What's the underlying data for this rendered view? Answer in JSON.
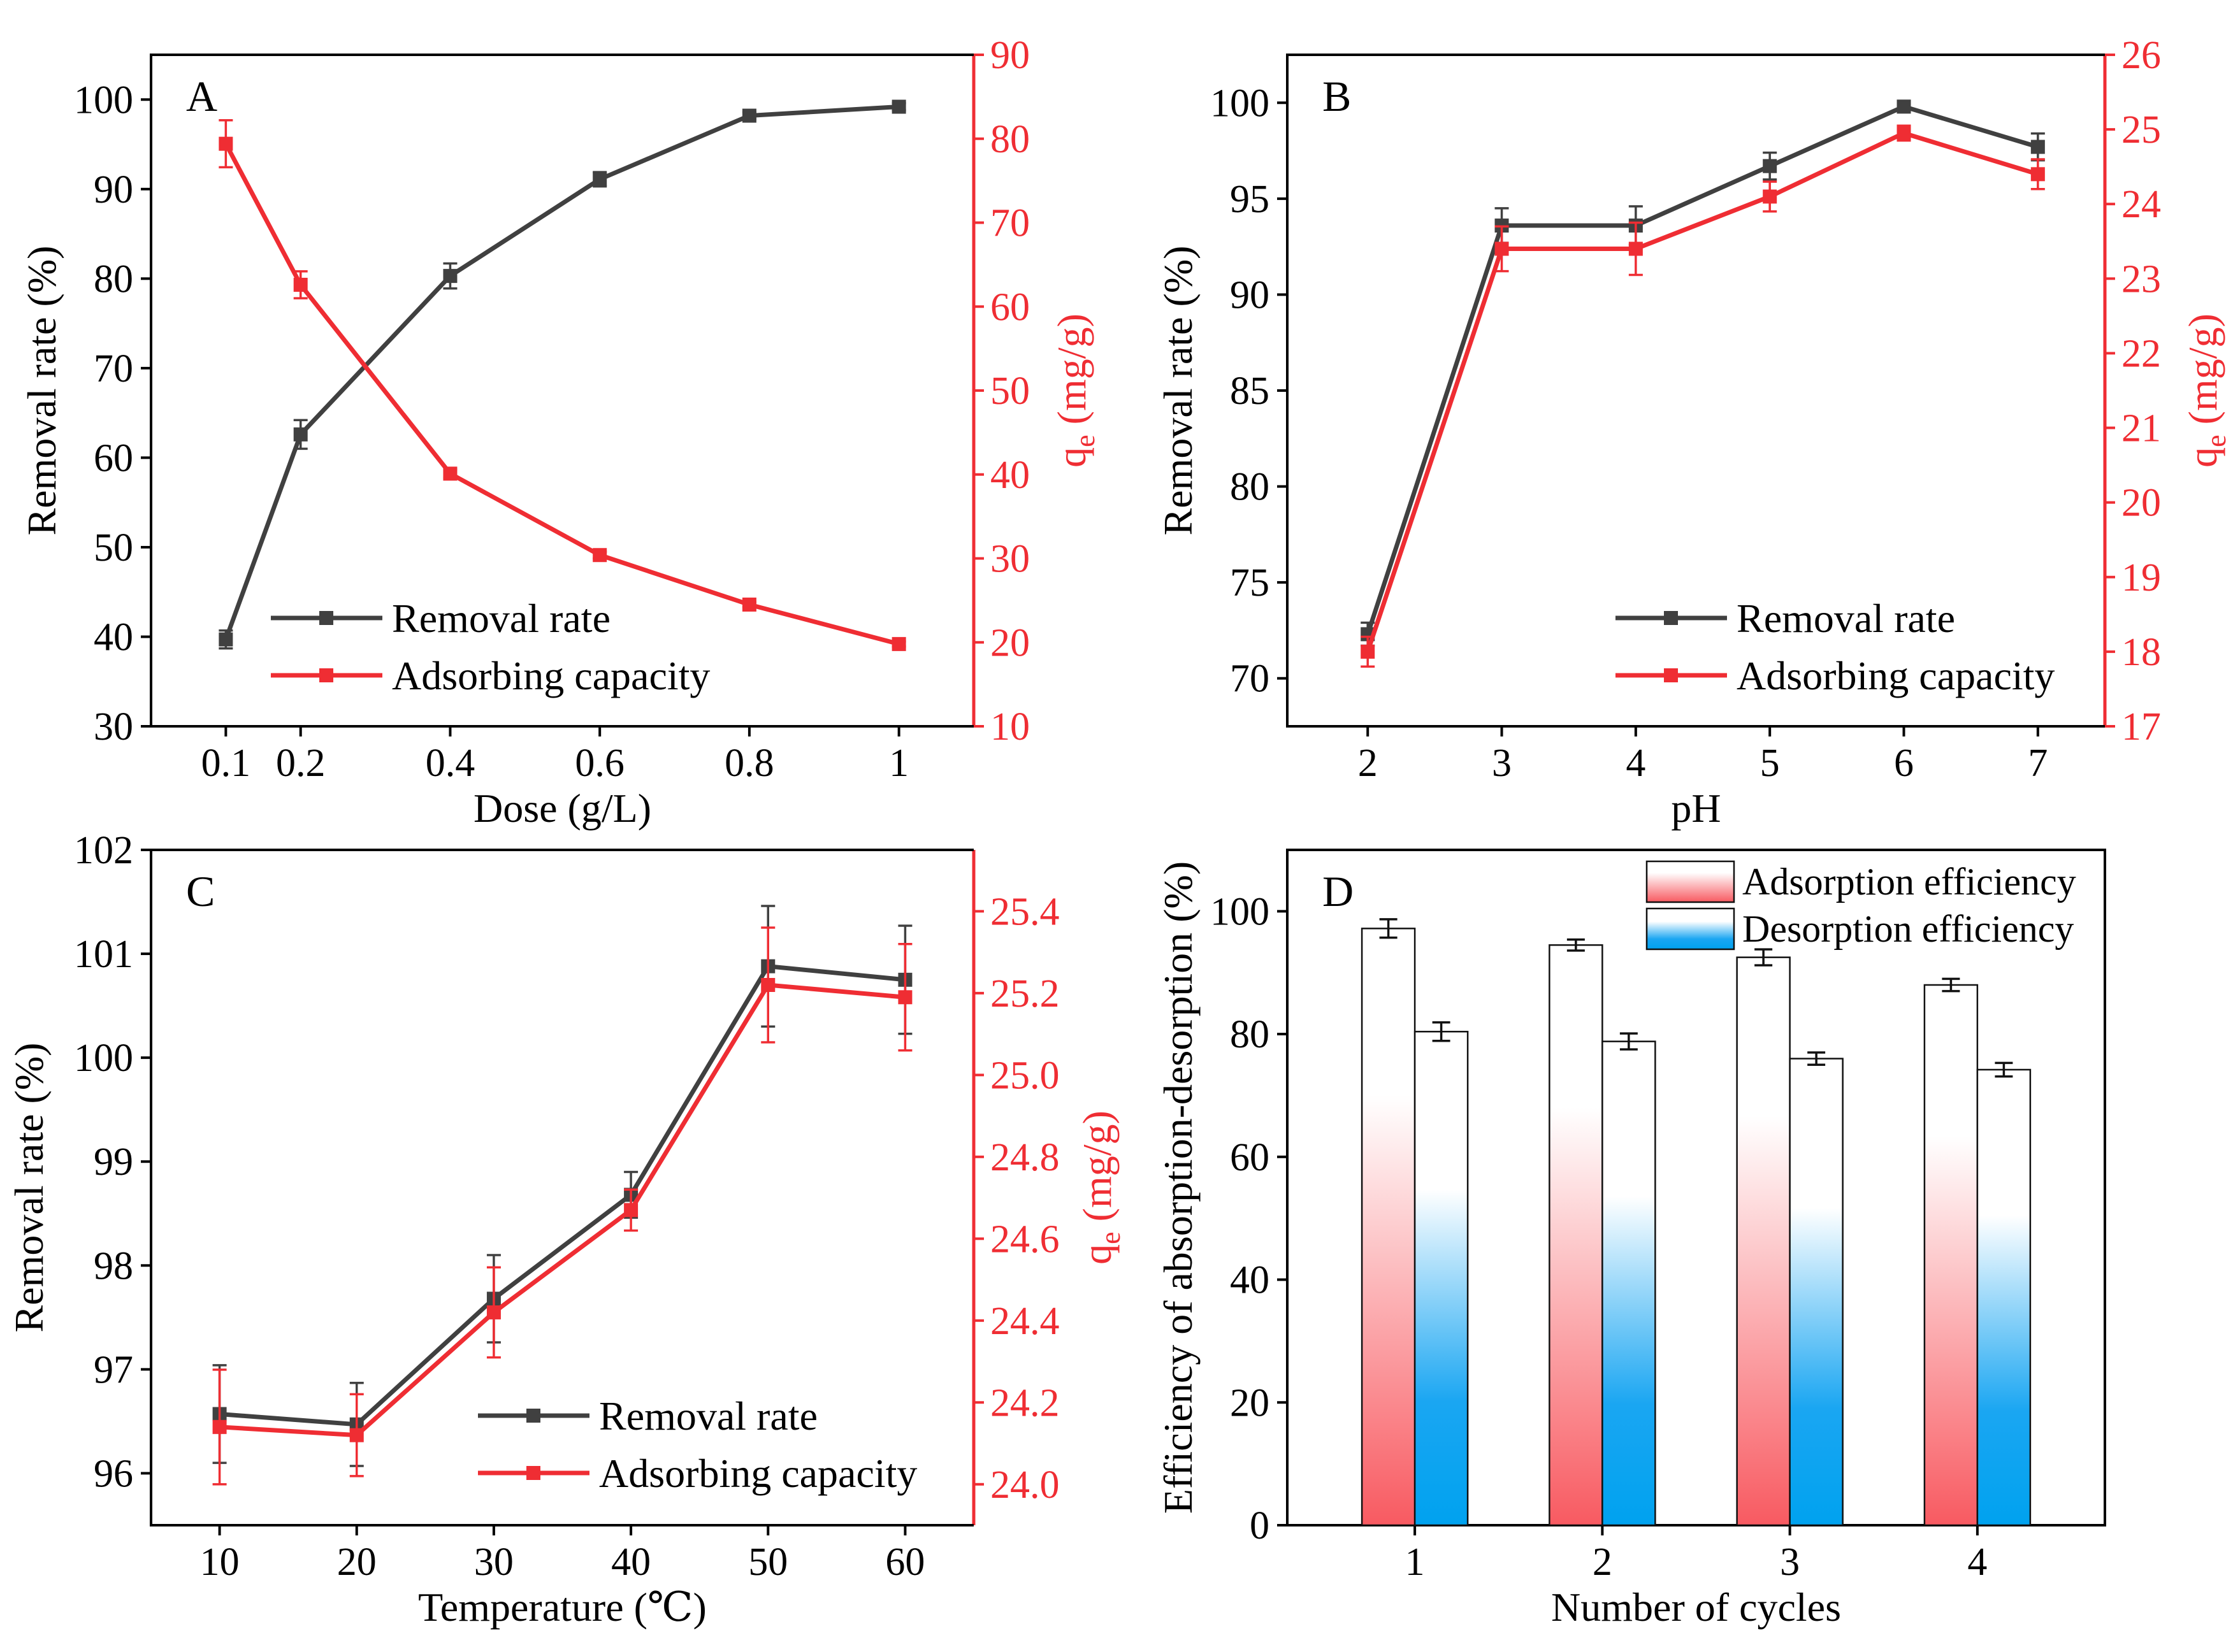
{
  "colors": {
    "black": "#404040",
    "red": "#ef2d33",
    "axis_red": "#ef2d33",
    "frame": "#000000",
    "blue": "#00a2ef"
  },
  "chart_data": [
    {
      "panel": "A",
      "type": "line",
      "xlabel": "Dose (g/L)",
      "ylabel_left": "Removal rate (%)",
      "ylabel_right": "qe (mg/g)",
      "xlim": [
        0,
        1.1
      ],
      "ylim_left": [
        30,
        105
      ],
      "ylim_right": [
        10,
        90
      ],
      "xticks": [
        0.1,
        0.2,
        0.4,
        0.6,
        0.8,
        1
      ],
      "xtick_labels": [
        "0.1",
        "0.2",
        "0.4",
        "0.6",
        "0.8",
        "1"
      ],
      "yticks_left": [
        30,
        40,
        50,
        60,
        70,
        80,
        90,
        100
      ],
      "yticks_right": [
        10,
        20,
        30,
        40,
        50,
        60,
        70,
        80,
        90
      ],
      "legend_position": "bottom-center",
      "series": [
        {
          "name": "Removal rate",
          "axis": "left",
          "color": "#404040",
          "x": [
            0.1,
            0.2,
            0.4,
            0.6,
            0.8,
            1
          ],
          "values": [
            39.7,
            62.6,
            80.3,
            91.1,
            98.2,
            99.2
          ],
          "errors": [
            1.0,
            1.6,
            1.4,
            0.8,
            0.4,
            0.4
          ]
        },
        {
          "name": "Adsorbing capacity",
          "axis": "right",
          "color": "#ef2d33",
          "x": [
            0.1,
            0.2,
            0.4,
            0.6,
            0.8,
            1
          ],
          "values": [
            79.4,
            62.6,
            40.1,
            30.4,
            24.5,
            19.8
          ],
          "errors": [
            2.8,
            1.6,
            0.5,
            0.4,
            0.3,
            0.3
          ]
        }
      ]
    },
    {
      "panel": "B",
      "type": "line",
      "xlabel": "pH",
      "ylabel_left": "Removal rate (%)",
      "ylabel_right": "qe (mg/g)",
      "xlim": [
        1.4,
        7.5
      ],
      "ylim_left": [
        67.5,
        102.5
      ],
      "ylim_right": [
        17,
        26
      ],
      "xticks": [
        2,
        3,
        4,
        5,
        6,
        7
      ],
      "xtick_labels": [
        "2",
        "3",
        "4",
        "5",
        "6",
        "7"
      ],
      "yticks_left": [
        70,
        75,
        80,
        85,
        90,
        95,
        100
      ],
      "yticks_right": [
        17,
        18,
        19,
        20,
        21,
        22,
        23,
        24,
        25,
        26
      ],
      "legend_position": "bottom-right",
      "series": [
        {
          "name": "Removal rate",
          "axis": "left",
          "color": "#404040",
          "x": [
            2,
            3,
            4,
            5,
            6,
            7
          ],
          "values": [
            72.3,
            93.6,
            93.6,
            96.7,
            99.8,
            97.7
          ],
          "errors": [
            0.6,
            0.9,
            1.0,
            0.7,
            0.3,
            0.7
          ]
        },
        {
          "name": "Adsorbing capacity",
          "axis": "right",
          "color": "#ef2d33",
          "x": [
            2,
            3,
            4,
            5,
            6,
            7
          ],
          "values": [
            18.0,
            23.4,
            23.4,
            24.1,
            24.95,
            24.4
          ],
          "errors": [
            0.2,
            0.3,
            0.35,
            0.2,
            0.1,
            0.2
          ]
        }
      ]
    },
    {
      "panel": "C",
      "type": "line",
      "xlabel": "Temperature (℃)",
      "ylabel_left": "Removal rate (%)",
      "ylabel_right": "qe (mg/g)",
      "xlim": [
        5,
        65
      ],
      "ylim_left": [
        95.5,
        102
      ],
      "ylim_right": [
        23.9,
        25.55
      ],
      "xticks": [
        10,
        20,
        30,
        40,
        50,
        60
      ],
      "xtick_labels": [
        "10",
        "20",
        "30",
        "40",
        "50",
        "60"
      ],
      "yticks_left": [
        96,
        97,
        98,
        99,
        100,
        101,
        102
      ],
      "yticks_right": [
        24.0,
        24.2,
        24.4,
        24.6,
        24.8,
        25.0,
        25.2,
        25.4
      ],
      "ytick_labels_right": [
        "24.0",
        "24.2",
        "24.4",
        "24.6",
        "24.8",
        "25.0",
        "25.2",
        "25.4"
      ],
      "legend_position": "bottom-right",
      "series": [
        {
          "name": "Removal rate",
          "axis": "left",
          "color": "#404040",
          "x": [
            10,
            20,
            30,
            40,
            50,
            60
          ],
          "values": [
            96.57,
            96.47,
            97.68,
            98.68,
            100.88,
            100.75
          ],
          "errors": [
            0.47,
            0.4,
            0.42,
            0.22,
            0.58,
            0.52
          ]
        },
        {
          "name": "Adsorbing capacity",
          "axis": "right",
          "color": "#ef2d33",
          "x": [
            10,
            20,
            30,
            40,
            50,
            60
          ],
          "values": [
            24.14,
            24.12,
            24.42,
            24.67,
            25.22,
            25.19
          ],
          "errors": [
            0.14,
            0.1,
            0.11,
            0.05,
            0.14,
            0.13
          ]
        }
      ]
    },
    {
      "panel": "D",
      "type": "bar",
      "xlabel": "Number of cycles",
      "ylabel": "Efficiency of absorption-desorption (%)",
      "categories": [
        "1",
        "2",
        "3",
        "4"
      ],
      "ylim": [
        0,
        110
      ],
      "yticks": [
        0,
        20,
        40,
        60,
        80,
        100
      ],
      "legend_position": "top-right",
      "series": [
        {
          "name": "Adsorption efficiency",
          "values": [
            97.2,
            94.5,
            92.5,
            88.0
          ],
          "errors": [
            1.5,
            0.9,
            1.3,
            1.0
          ]
        },
        {
          "name": "Desorption efficiency",
          "values": [
            80.4,
            78.8,
            76.0,
            74.2
          ],
          "errors": [
            1.5,
            1.3,
            1.0,
            1.1
          ]
        }
      ]
    }
  ]
}
